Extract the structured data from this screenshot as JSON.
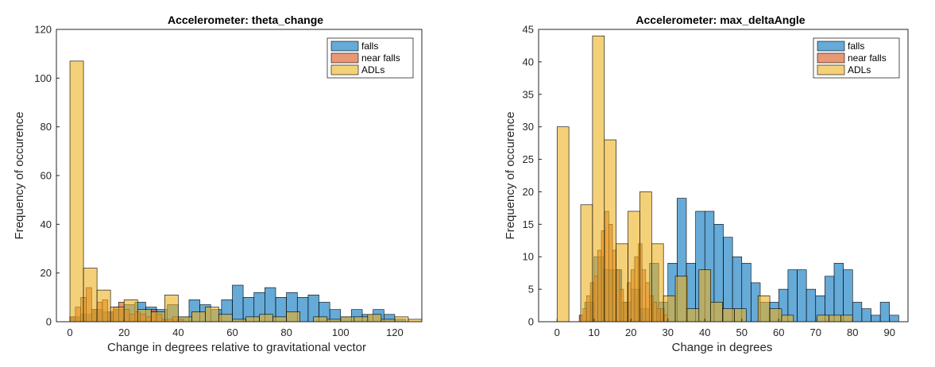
{
  "chart_data": [
    {
      "type": "histogram",
      "title": "Accelerometer: theta_change",
      "xlabel": "Change in degrees relative to gravitational vector",
      "ylabel": "Frequency of occurence",
      "xlim": [
        -5,
        130
      ],
      "ylim": [
        0,
        120
      ],
      "xticks": [
        0,
        20,
        40,
        60,
        80,
        100,
        120
      ],
      "yticks": [
        0,
        20,
        40,
        60,
        80,
        100,
        120
      ],
      "legend_position": "top-right",
      "series": [
        {
          "name": "falls",
          "color": "#0072BD",
          "bin_width": 4,
          "bins": [
            [
              0,
              2
            ],
            [
              4,
              3
            ],
            [
              8,
              5
            ],
            [
              12,
              4
            ],
            [
              16,
              5
            ],
            [
              20,
              7
            ],
            [
              24,
              8
            ],
            [
              28,
              6
            ],
            [
              32,
              5
            ],
            [
              36,
              7
            ],
            [
              40,
              2
            ],
            [
              44,
              9
            ],
            [
              48,
              7
            ],
            [
              52,
              5
            ],
            [
              56,
              9
            ],
            [
              60,
              15
            ],
            [
              64,
              10
            ],
            [
              68,
              12
            ],
            [
              72,
              14
            ],
            [
              76,
              10
            ],
            [
              80,
              12
            ],
            [
              84,
              10
            ],
            [
              88,
              11
            ],
            [
              92,
              8
            ],
            [
              96,
              5
            ],
            [
              100,
              2
            ],
            [
              104,
              5
            ],
            [
              108,
              3
            ],
            [
              112,
              5
            ],
            [
              116,
              3
            ],
            [
              120,
              1
            ]
          ]
        },
        {
          "name": "near falls",
          "color": "#D95319",
          "bin_width": 2,
          "bins": [
            [
              0,
              2
            ],
            [
              2,
              6
            ],
            [
              4,
              10
            ],
            [
              6,
              14
            ],
            [
              8,
              5
            ],
            [
              10,
              8
            ],
            [
              12,
              9
            ],
            [
              14,
              4
            ],
            [
              16,
              6
            ],
            [
              18,
              8
            ],
            [
              20,
              5
            ],
            [
              22,
              3
            ],
            [
              24,
              4
            ],
            [
              26,
              3
            ],
            [
              28,
              2
            ],
            [
              30,
              5
            ],
            [
              32,
              3
            ],
            [
              34,
              1
            ],
            [
              36,
              1
            ],
            [
              38,
              2
            ],
            [
              40,
              1
            ]
          ]
        },
        {
          "name": "ADLs",
          "color": "#EDB120",
          "bin_width": 5,
          "bins": [
            [
              0,
              107
            ],
            [
              5,
              22
            ],
            [
              10,
              13
            ],
            [
              15,
              6
            ],
            [
              20,
              9
            ],
            [
              25,
              5
            ],
            [
              30,
              4
            ],
            [
              35,
              11
            ],
            [
              40,
              2
            ],
            [
              45,
              4
            ],
            [
              50,
              6
            ],
            [
              55,
              3
            ],
            [
              60,
              1
            ],
            [
              65,
              2
            ],
            [
              70,
              3
            ],
            [
              75,
              2
            ],
            [
              80,
              4
            ],
            [
              85,
              0
            ],
            [
              90,
              2
            ],
            [
              95,
              1
            ],
            [
              100,
              2
            ],
            [
              105,
              2
            ],
            [
              110,
              3
            ],
            [
              115,
              1
            ],
            [
              120,
              2
            ],
            [
              125,
              1
            ]
          ]
        }
      ]
    },
    {
      "type": "histogram",
      "title": "Accelerometer: max_deltaAngle",
      "xlabel": "Change in degrees",
      "ylabel": "Frequency of occurence",
      "xlim": [
        -5,
        95
      ],
      "ylim": [
        0,
        45
      ],
      "xticks": [
        0,
        10,
        20,
        30,
        40,
        50,
        60,
        70,
        80,
        90
      ],
      "yticks": [
        0,
        5,
        10,
        15,
        20,
        25,
        30,
        35,
        40,
        45
      ],
      "legend_position": "top-right",
      "series": [
        {
          "name": "falls",
          "color": "#0072BD",
          "bin_width": 2.5,
          "bins": [
            [
              7.5,
              3
            ],
            [
              10,
              10
            ],
            [
              12.5,
              8
            ],
            [
              15,
              8
            ],
            [
              17.5,
              3
            ],
            [
              20,
              5
            ],
            [
              22.5,
              2
            ],
            [
              25,
              9
            ],
            [
              27.5,
              3
            ],
            [
              30,
              9
            ],
            [
              32.5,
              19
            ],
            [
              35,
              9
            ],
            [
              37.5,
              17
            ],
            [
              40,
              17
            ],
            [
              42.5,
              15
            ],
            [
              45,
              13
            ],
            [
              47.5,
              10
            ],
            [
              50,
              9
            ],
            [
              52.5,
              6
            ],
            [
              55,
              3
            ],
            [
              57.5,
              3
            ],
            [
              60,
              5
            ],
            [
              62.5,
              8
            ],
            [
              65,
              8
            ],
            [
              67.5,
              5
            ],
            [
              70,
              4
            ],
            [
              72.5,
              7
            ],
            [
              75,
              9
            ],
            [
              77.5,
              8
            ],
            [
              80,
              3
            ],
            [
              82.5,
              2
            ],
            [
              85,
              1
            ],
            [
              87.5,
              3
            ],
            [
              90,
              1
            ]
          ]
        },
        {
          "name": "near falls",
          "color": "#D95319",
          "bin_width": 1,
          "bins": [
            [
              6,
              1
            ],
            [
              7,
              2
            ],
            [
              8,
              4
            ],
            [
              9,
              6
            ],
            [
              10,
              7
            ],
            [
              11,
              11
            ],
            [
              12,
              14
            ],
            [
              13,
              17
            ],
            [
              14,
              15
            ],
            [
              15,
              11
            ],
            [
              16,
              8
            ],
            [
              17,
              5
            ],
            [
              18,
              3
            ],
            [
              19,
              6
            ],
            [
              20,
              8
            ],
            [
              21,
              10
            ],
            [
              22,
              12
            ],
            [
              23,
              8
            ],
            [
              24,
              6
            ],
            [
              25,
              4
            ],
            [
              26,
              3
            ],
            [
              27,
              2
            ],
            [
              28,
              2
            ],
            [
              29,
              1
            ]
          ]
        },
        {
          "name": "ADLs",
          "color": "#EDB120",
          "bin_width": 3.2,
          "bins": [
            [
              0,
              30
            ],
            [
              3.2,
              0
            ],
            [
              6.4,
              18
            ],
            [
              9.6,
              44
            ],
            [
              12.8,
              28
            ],
            [
              16,
              12
            ],
            [
              19.2,
              17
            ],
            [
              22.4,
              20
            ],
            [
              25.6,
              12
            ],
            [
              28.8,
              4
            ],
            [
              32,
              7
            ],
            [
              35.2,
              2
            ],
            [
              38.4,
              8
            ],
            [
              41.6,
              3
            ],
            [
              44.8,
              2
            ],
            [
              48,
              2
            ],
            [
              51.2,
              0
            ],
            [
              54.4,
              4
            ],
            [
              57.6,
              2
            ],
            [
              60.8,
              1
            ],
            [
              64,
              0
            ],
            [
              67.2,
              0
            ],
            [
              70.4,
              1
            ],
            [
              73.6,
              1
            ],
            [
              76.8,
              1
            ],
            [
              80,
              0
            ]
          ]
        }
      ]
    }
  ]
}
